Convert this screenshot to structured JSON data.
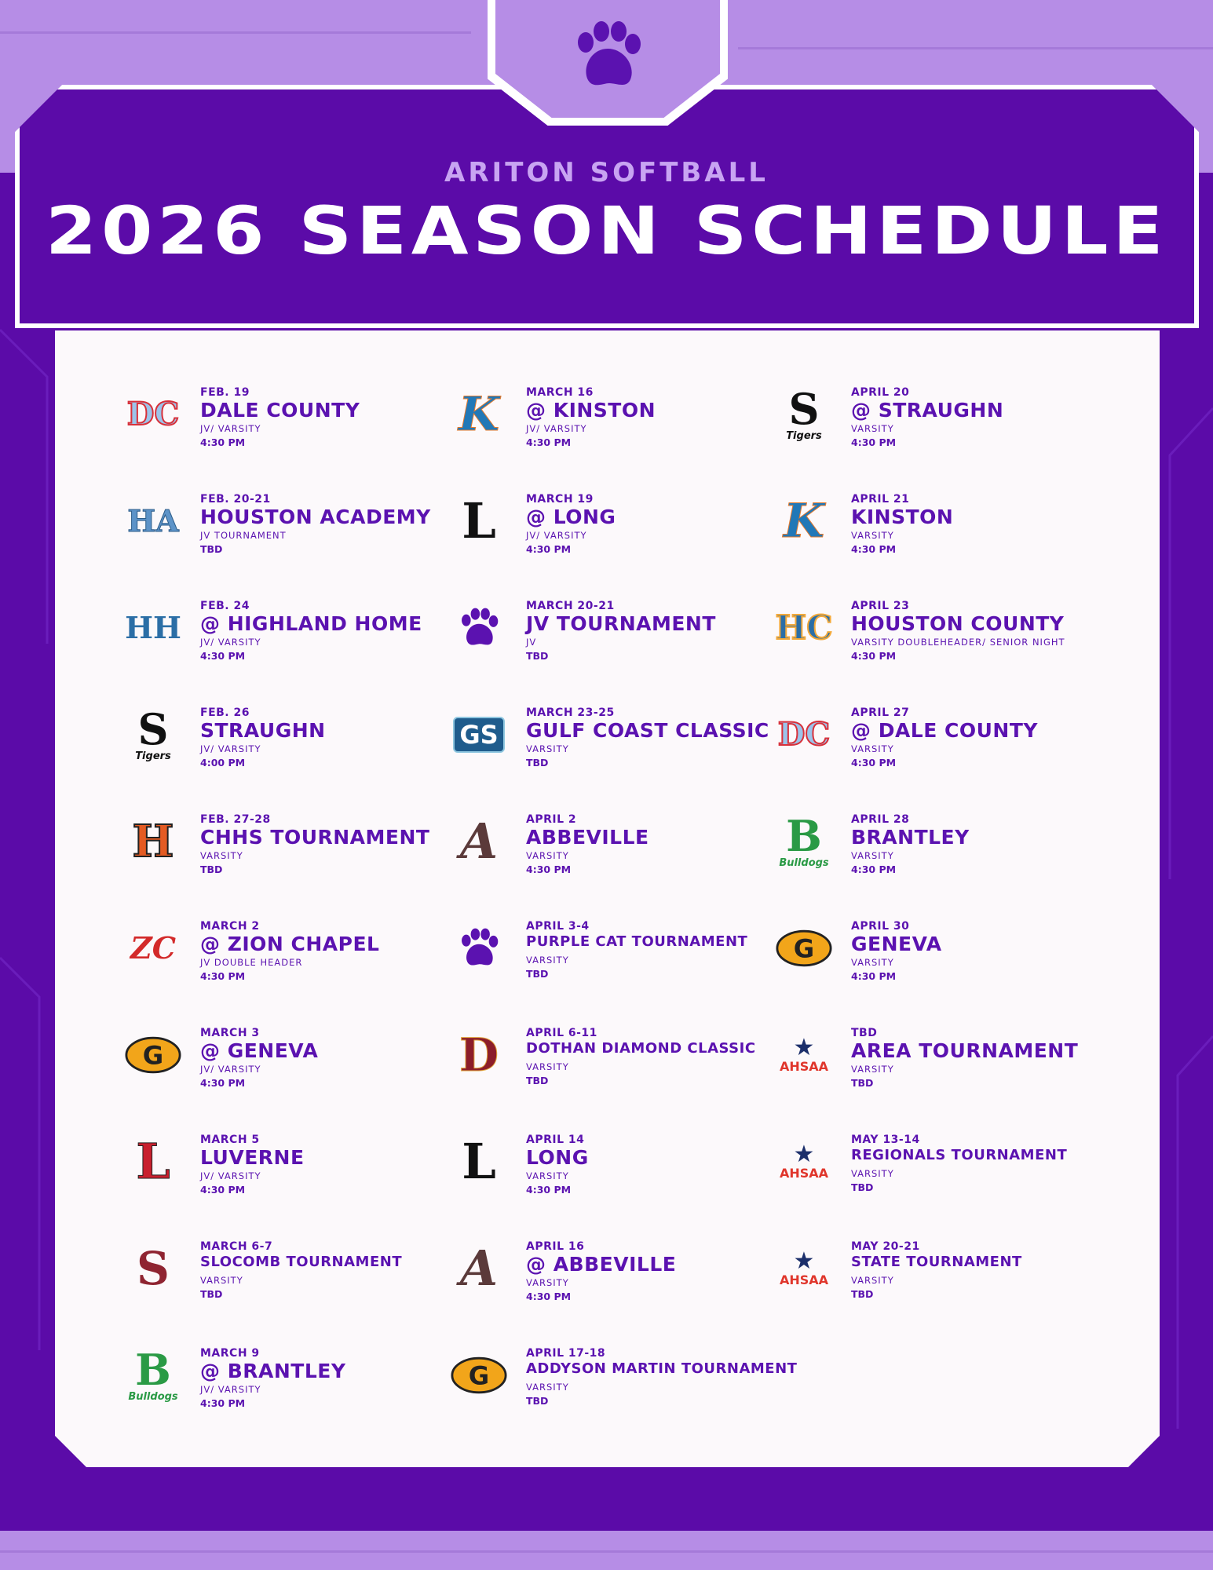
{
  "header": {
    "subtitle": "ARITON SOFTBALL",
    "title": "2026 SEASON SCHEDULE",
    "logo_icon": "paw-icon"
  },
  "colors": {
    "primary_purple": "#5b0ba8",
    "light_purple": "#b68de6",
    "text_purple": "#5b12b0",
    "panel": "#fcf9fb"
  },
  "columns": [
    [
      {
        "date": "FEB. 19",
        "opponent": "DALE COUNTY",
        "level": "JV/ VARSITY",
        "time": "4:30 PM",
        "logo": "dc"
      },
      {
        "date": "FEB. 20-21",
        "opponent": "HOUSTON ACADEMY",
        "level": "JV TOURNAMENT",
        "time": "TBD",
        "logo": "ha"
      },
      {
        "date": "FEB. 24",
        "opponent": "@ HIGHLAND HOME",
        "level": "JV/ VARSITY",
        "time": "4:30 PM",
        "logo": "hh"
      },
      {
        "date": "FEB. 26",
        "opponent": "STRAUGHN",
        "level": "JV/ VARSITY",
        "time": "4:00 PM",
        "logo": "tigers"
      },
      {
        "date": "FEB. 27-28",
        "opponent": "CHHS TOURNAMENT",
        "level": "VARSITY",
        "time": "TBD",
        "logo": "chhs"
      },
      {
        "date": "MARCH 2",
        "opponent": "@ ZION CHAPEL",
        "level": "JV DOUBLE HEADER",
        "time": "4:30 PM",
        "logo": "zc"
      },
      {
        "date": "MARCH 3",
        "opponent": "@ GENEVA",
        "level": "JV/ VARSITY",
        "time": "4:30 PM",
        "logo": "g"
      },
      {
        "date": "MARCH 5",
        "opponent": "LUVERNE",
        "level": "JV/ VARSITY",
        "time": "4:30 PM",
        "logo": "l-red"
      },
      {
        "date": "MARCH 6-7",
        "opponent": "SLOCOMB TOURNAMENT",
        "level": "VARSITY",
        "time": "TBD",
        "logo": "s-slocomb",
        "small": true
      },
      {
        "date": "MARCH 9",
        "opponent": "@ BRANTLEY",
        "level": "JV/ VARSITY",
        "time": "4:30 PM",
        "logo": "bulldogs"
      }
    ],
    [
      {
        "date": "MARCH 16",
        "opponent": "@ KINSTON",
        "level": "JV/ VARSITY",
        "time": "4:30 PM",
        "logo": "k"
      },
      {
        "date": "MARCH 19",
        "opponent": "@ LONG",
        "level": "JV/ VARSITY",
        "time": "4:30 PM",
        "logo": "l-black"
      },
      {
        "date": "MARCH 20-21",
        "opponent": "JV TOURNAMENT",
        "level": "JV",
        "time": "TBD",
        "logo": "paw"
      },
      {
        "date": "MARCH 23-25",
        "opponent": "GULF COAST CLASSIC",
        "level": "VARSITY",
        "time": "TBD",
        "logo": "gs"
      },
      {
        "date": "APRIL 2",
        "opponent": "ABBEVILLE",
        "level": "VARSITY",
        "time": "4:30 PM",
        "logo": "a"
      },
      {
        "date": "APRIL 3-4",
        "opponent": "PURPLE CAT TOURNAMENT",
        "level": "VARSITY",
        "time": "TBD",
        "logo": "paw",
        "small": true
      },
      {
        "date": "APRIL 6-11",
        "opponent": "DOTHAN DIAMOND CLASSIC",
        "level": "VARSITY",
        "time": "TBD",
        "logo": "d",
        "small": true
      },
      {
        "date": "APRIL 14",
        "opponent": "LONG",
        "level": "VARSITY",
        "time": "4:30 PM",
        "logo": "l-black"
      },
      {
        "date": "APRIL 16",
        "opponent": "@ ABBEVILLE",
        "level": "VARSITY",
        "time": "4:30 PM",
        "logo": "a"
      },
      {
        "date": "APRIL 17-18",
        "opponent": "ADDYSON MARTIN TOURNAMENT",
        "level": "VARSITY",
        "time": "TBD",
        "logo": "g",
        "small": true
      }
    ],
    [
      {
        "date": "APRIL 20",
        "opponent": "@ STRAUGHN",
        "level": "VARSITY",
        "time": "4:30 PM",
        "logo": "tigers"
      },
      {
        "date": "APRIL 21",
        "opponent": "KINSTON",
        "level": "VARSITY",
        "time": "4:30 PM",
        "logo": "k"
      },
      {
        "date": "APRIL 23",
        "opponent": "HOUSTON COUNTY",
        "level": "VARSITY DOUBLEHEADER/ SENIOR NIGHT",
        "time": "4:30 PM",
        "logo": "hc"
      },
      {
        "date": "APRIL 27",
        "opponent": "@ DALE COUNTY",
        "level": "VARSITY",
        "time": "4:30 PM",
        "logo": "dc"
      },
      {
        "date": "APRIL 28",
        "opponent": "BRANTLEY",
        "level": "VARSITY",
        "time": "4:30 PM",
        "logo": "bulldogs"
      },
      {
        "date": "APRIL 30",
        "opponent": "GENEVA",
        "level": "VARSITY",
        "time": "4:30 PM",
        "logo": "g"
      },
      {
        "date": "TBD",
        "opponent": "AREA TOURNAMENT",
        "level": "VARSITY",
        "time": "TBD",
        "logo": "ahsaa"
      },
      {
        "date": "MAY 13-14",
        "opponent": "REGIONALS TOURNAMENT",
        "level": "VARSITY",
        "time": "TBD",
        "logo": "ahsaa",
        "small": true
      },
      {
        "date": "MAY 20-21",
        "opponent": "STATE TOURNAMENT",
        "level": "VARSITY",
        "time": "TBD",
        "logo": "ahsaa",
        "small": true
      }
    ]
  ],
  "logo_text": {
    "ahsaa": "AHSAA",
    "gs": "GS",
    "tigers": "Tigers",
    "bulldogs": "Bulldogs"
  }
}
